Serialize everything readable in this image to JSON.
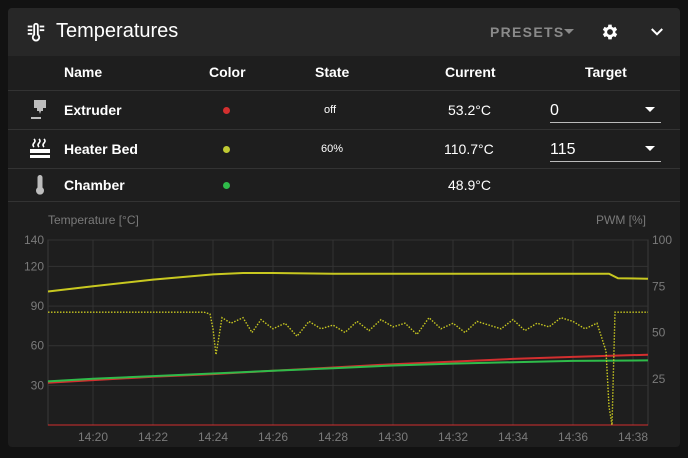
{
  "header": {
    "title": "Temperatures",
    "presets_label": "PRESETS",
    "title_icon": "thermometer-lines-icon",
    "settings_icon": "gear-icon",
    "collapse_icon": "chevron-down-icon"
  },
  "table": {
    "columns": {
      "name": "Name",
      "color": "Color",
      "state": "State",
      "current": "Current",
      "target": "Target"
    },
    "rows": [
      {
        "icon": "printer-nozzle-icon",
        "name": "Extruder",
        "color": "#d32f2f",
        "state": "off",
        "current": "53.2°C",
        "target": "0"
      },
      {
        "icon": "radiator-icon",
        "name": "Heater Bed",
        "color": "#c0ca33",
        "state": "60%",
        "current": "110.7°C",
        "target": "115"
      },
      {
        "icon": "thermometer-icon",
        "name": "Chamber",
        "color": "#2fbb4a",
        "state": "",
        "current": "48.9°C",
        "target": ""
      }
    ]
  },
  "chart_data": {
    "type": "line",
    "ylabel": "Temperature [°C]",
    "y2label": "PWM [%]",
    "ylim": [
      0,
      140
    ],
    "yticks": [
      30,
      60,
      90,
      120,
      140
    ],
    "y2lim": [
      0,
      100
    ],
    "y2ticks": [
      25,
      50,
      75,
      100
    ],
    "xticks": [
      "14:20",
      "14:22",
      "14:24",
      "14:26",
      "14:28",
      "14:30",
      "14:32",
      "14:34",
      "14:36",
      "14:38"
    ],
    "xlim": [
      18.5,
      38.5
    ],
    "grid": true,
    "series": [
      {
        "color": "#c8c820",
        "style": "solid",
        "axis": "left",
        "x": [
          18.5,
          20,
          22,
          24,
          25,
          26,
          28,
          30,
          32,
          34,
          36,
          37.2,
          37.5,
          38.5
        ],
        "y": [
          101,
          105,
          110,
          114,
          115,
          115,
          114.5,
          114.5,
          114.5,
          114.5,
          114.5,
          114.5,
          111,
          110.7
        ]
      },
      {
        "color": "#d32f2f",
        "style": "solid",
        "axis": "left",
        "x": [
          18.5,
          20,
          22,
          24,
          26,
          28,
          30,
          32,
          34,
          36,
          38.5
        ],
        "y": [
          32,
          34,
          36.5,
          38.5,
          41,
          43.5,
          46,
          48,
          50,
          51.5,
          53.2
        ]
      },
      {
        "color": "#2fbb4a",
        "style": "solid",
        "axis": "left",
        "x": [
          18.5,
          20,
          22,
          24,
          26,
          28,
          30,
          32,
          34,
          36,
          38.5
        ],
        "y": [
          33,
          35,
          37,
          39,
          41,
          43,
          45,
          46.5,
          47.5,
          48.5,
          48.9
        ]
      },
      {
        "color": "#c8c820",
        "style": "dotted",
        "axis": "right",
        "x": [
          18.5,
          20,
          22,
          23.7,
          23.9,
          24.0,
          24.1,
          24.3,
          24.6,
          25,
          25.3,
          25.6,
          26,
          26.4,
          26.8,
          27.2,
          27.6,
          28,
          28.4,
          28.8,
          29.2,
          29.6,
          30,
          30.4,
          30.8,
          31.2,
          31.6,
          32,
          32.4,
          32.8,
          33.2,
          33.6,
          34,
          34.4,
          34.8,
          35.2,
          35.6,
          36,
          36.4,
          36.8,
          37.1,
          37.2,
          37.3,
          37.4,
          37.5,
          38.5
        ],
        "y": [
          61,
          61,
          61,
          61,
          60,
          52,
          38,
          58,
          55,
          58,
          50,
          57,
          52,
          55,
          48,
          56,
          52,
          54,
          50,
          56,
          51,
          57,
          53,
          55,
          49,
          58,
          52,
          55,
          50,
          56,
          54,
          52,
          57,
          51,
          55,
          53,
          58,
          56,
          52,
          55,
          40,
          10,
          0,
          61,
          61,
          61
        ]
      }
    ]
  }
}
